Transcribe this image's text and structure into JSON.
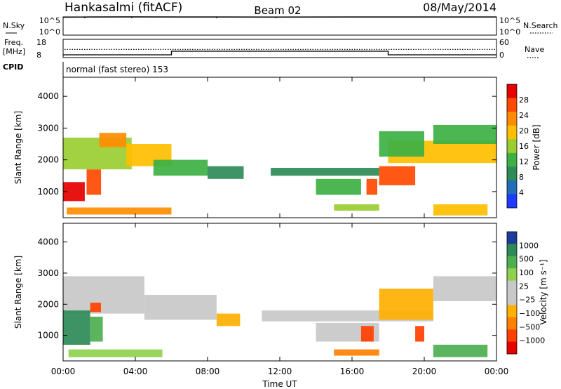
{
  "header": {
    "station": "Hankasalmi (fitACF)",
    "beam": "Beam 02",
    "date": "08/May/2014"
  },
  "nsky_panel": {
    "left_label": "N.Sky",
    "left_ticks": [
      "10^5",
      "10^0"
    ],
    "right_label": "N.Search",
    "right_ticks": [
      "10^5",
      "10^0"
    ]
  },
  "freq_panel": {
    "left_label_1": "Freq.",
    "left_label_2": "[MHz]",
    "left_ticks": [
      "18",
      "8"
    ],
    "right_label": "Nave",
    "right_ticks": [
      "60",
      "0"
    ]
  },
  "cpid": {
    "label": "CPID",
    "text": "normal (fast stereo) 153"
  },
  "power_colorbar": {
    "label": "Power [dB]",
    "ticks": [
      "28",
      "24",
      "20",
      "16",
      "12",
      "8",
      "4"
    ],
    "colors": [
      "#e60000",
      "#ff4a00",
      "#ff8c00",
      "#ffbe00",
      "#9acd32",
      "#3cb043",
      "#2e8b57",
      "#1e6fb5",
      "#1e3cff"
    ]
  },
  "velocity_colorbar": {
    "label": "Velocity [m s⁻¹]",
    "ticks": [
      "1000",
      "500",
      "100",
      "25",
      "−25",
      "−100",
      "−500",
      "−1000"
    ],
    "colors": [
      "#1e3c9c",
      "#2d8a57",
      "#4caf50",
      "#8fd14f",
      "#c8c8c8",
      "#c8c8c8",
      "#ffb000",
      "#ff8000",
      "#ff4000",
      "#e60000"
    ]
  },
  "chart_data": [
    {
      "type": "line",
      "name": "N.Sky / N.Search",
      "x_range_hours": [
        0,
        24
      ],
      "y_scale": "log",
      "x": [
        0,
        1.5,
        3.8,
        8.5,
        11.8,
        16,
        20,
        24
      ],
      "values": [
        80000,
        90000,
        95000,
        90000,
        88000,
        90000,
        92000,
        90000
      ],
      "spikes_hours": [
        1.2,
        3.8,
        8.5,
        11.8
      ]
    },
    {
      "type": "line",
      "name": "Freq / Nave",
      "x_range_hours": [
        0,
        24
      ],
      "freq_ylim": [
        8,
        18
      ],
      "freq_steps": [
        {
          "from": 0,
          "to": 6,
          "value": 9.5
        },
        {
          "from": 6,
          "to": 18,
          "value": 11.5
        },
        {
          "from": 18,
          "to": 24,
          "value": 9.5
        }
      ],
      "nave_ylim": [
        0,
        60
      ],
      "nave_value": 27
    },
    {
      "type": "heatmap",
      "title": "",
      "xlabel": "Time UT",
      "ylabel": "Slant Range [km]",
      "x_ticks": [
        "00:00",
        "04:00",
        "08:00",
        "12:00",
        "16:00",
        "20:00",
        "00:00"
      ],
      "y_ticks": [
        1000,
        2000,
        3000,
        4000
      ],
      "ylim": [
        180,
        4600
      ],
      "xlim_hours": [
        0,
        24
      ],
      "regions": [
        {
          "t0": 0.0,
          "t1": 1.2,
          "r0": 700,
          "r1": 1300,
          "value": 26
        },
        {
          "t0": 1.3,
          "t1": 2.1,
          "r0": 900,
          "r1": 1700,
          "value": 22
        },
        {
          "t0": 0.0,
          "t1": 3.8,
          "r0": 1700,
          "r1": 2700,
          "value": 14
        },
        {
          "t0": 2.0,
          "t1": 3.5,
          "r0": 2400,
          "r1": 2850,
          "value": 20
        },
        {
          "t0": 3.5,
          "t1": 6.0,
          "r0": 1800,
          "r1": 2500,
          "value": 16
        },
        {
          "t0": 5.0,
          "t1": 8.0,
          "r0": 1500,
          "r1": 2000,
          "value": 10
        },
        {
          "t0": 8.0,
          "t1": 10.0,
          "r0": 1400,
          "r1": 1800,
          "value": 8
        },
        {
          "t0": 0.2,
          "t1": 6.0,
          "r0": 280,
          "r1": 500,
          "value": 20
        },
        {
          "t0": 11.5,
          "t1": 17.5,
          "r0": 1500,
          "r1": 1750,
          "value": 8
        },
        {
          "t0": 14.0,
          "t1": 16.5,
          "r0": 900,
          "r1": 1400,
          "value": 10
        },
        {
          "t0": 15.0,
          "t1": 17.5,
          "r0": 400,
          "r1": 600,
          "value": 14
        },
        {
          "t0": 16.8,
          "t1": 17.4,
          "r0": 900,
          "r1": 1400,
          "value": 24
        },
        {
          "t0": 17.5,
          "t1": 19.5,
          "r0": 1200,
          "r1": 1800,
          "value": 22
        },
        {
          "t0": 18.0,
          "t1": 24.0,
          "r0": 1900,
          "r1": 2600,
          "value": 18
        },
        {
          "t0": 17.5,
          "t1": 20.0,
          "r0": 2100,
          "r1": 2900,
          "value": 10
        },
        {
          "t0": 20.5,
          "t1": 24.0,
          "r0": 2500,
          "r1": 3100,
          "value": 10
        },
        {
          "t0": 20.5,
          "t1": 23.5,
          "r0": 250,
          "r1": 600,
          "value": 16
        }
      ]
    },
    {
      "type": "heatmap",
      "title": "",
      "xlabel": "Time UT",
      "ylabel": "Slant Range [km]",
      "x_ticks": [
        "00:00",
        "04:00",
        "08:00",
        "12:00",
        "16:00",
        "20:00",
        "00:00"
      ],
      "y_ticks": [
        1000,
        2000,
        3000,
        4000
      ],
      "ylim": [
        180,
        4600
      ],
      "xlim_hours": [
        0,
        24
      ],
      "regions": [
        {
          "t0": 0.0,
          "t1": 4.5,
          "r0": 1700,
          "r1": 2900,
          "value": 0
        },
        {
          "t0": 4.5,
          "t1": 8.5,
          "r0": 1500,
          "r1": 2300,
          "value": 0
        },
        {
          "t0": 0.0,
          "t1": 1.5,
          "r0": 700,
          "r1": 1800,
          "value": 600
        },
        {
          "t0": 1.5,
          "t1": 2.2,
          "r0": 800,
          "r1": 1600,
          "value": 150
        },
        {
          "t0": 1.5,
          "t1": 2.1,
          "r0": 1750,
          "r1": 2050,
          "value": -700
        },
        {
          "t0": 0.3,
          "t1": 5.5,
          "r0": 300,
          "r1": 550,
          "value": 60
        },
        {
          "t0": 8.5,
          "t1": 9.8,
          "r0": 1300,
          "r1": 1700,
          "value": -200
        },
        {
          "t0": 11.0,
          "t1": 20.5,
          "r0": 1450,
          "r1": 1800,
          "value": 0
        },
        {
          "t0": 14.0,
          "t1": 17.5,
          "r0": 800,
          "r1": 1400,
          "value": 0
        },
        {
          "t0": 16.5,
          "t1": 17.2,
          "r0": 800,
          "r1": 1300,
          "value": -800
        },
        {
          "t0": 15.0,
          "t1": 17.5,
          "r0": 350,
          "r1": 550,
          "value": -300
        },
        {
          "t0": 17.5,
          "t1": 20.5,
          "r0": 1500,
          "r1": 2500,
          "value": -150
        },
        {
          "t0": 19.5,
          "t1": 20.0,
          "r0": 800,
          "r1": 1300,
          "value": -800
        },
        {
          "t0": 20.5,
          "t1": 24.0,
          "r0": 2100,
          "r1": 2900,
          "value": 0
        },
        {
          "t0": 20.5,
          "t1": 23.5,
          "r0": 300,
          "r1": 700,
          "value": 300
        }
      ]
    }
  ]
}
